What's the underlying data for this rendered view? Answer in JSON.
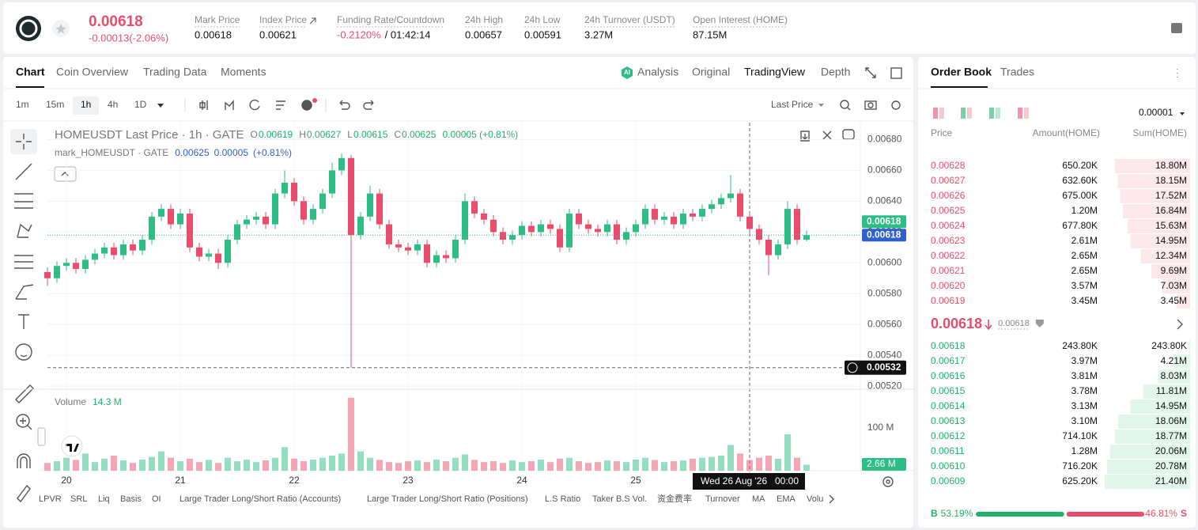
{
  "header": {
    "price": "0.00618",
    "change": "-0.00013(-2.06%)",
    "stats": [
      {
        "label": "Mark Price",
        "value": "0.00618"
      },
      {
        "label": "Index Price",
        "value": "0.00621"
      },
      {
        "label": "Funding Rate/Countdown",
        "value": "-0.2120%",
        "countdown": "/ 01:42:14"
      },
      {
        "label": "24h High",
        "value": "0.00657"
      },
      {
        "label": "24h Low",
        "value": "0.00591"
      },
      {
        "label": "24h Turnover (USDT)",
        "value": "3.27M"
      },
      {
        "label": "Open Interest (HOME)",
        "value": "87.15M"
      }
    ]
  },
  "tabs": [
    "Chart",
    "Coin Overview",
    "Trading Data",
    "Moments"
  ],
  "view_tabs": [
    "Analysis",
    "Original",
    "TradingView",
    "Depth"
  ],
  "intervals": [
    "1m",
    "15m",
    "1h",
    "4h",
    "1D"
  ],
  "price_type": "Last Price",
  "indicators": [
    "LPVR",
    "SRL",
    "Liq",
    "Basis",
    "OI",
    "Large Trader Long/Short Ratio (Accounts)",
    "Large Trader Long/Short Ratio (Positions)",
    "L.S Ratio",
    "Taker B.S Vol.",
    "资金费率",
    "Turnover",
    "MA",
    "EMA",
    "Volu"
  ],
  "chart_data": {
    "type": "candlestick",
    "categories": [
      null,
      null,
      "20",
      null,
      null,
      null,
      null,
      null,
      null,
      null,
      null,
      null,
      null,
      null,
      "21",
      null,
      null,
      null,
      null,
      null,
      null,
      null,
      null,
      null,
      null,
      null,
      "22",
      null,
      null,
      null,
      null,
      null,
      null,
      null,
      null,
      null,
      null,
      null,
      "23",
      null,
      null,
      null,
      null,
      null,
      null,
      null,
      null,
      null,
      null,
      null,
      "24",
      null,
      null,
      null,
      null,
      null,
      null,
      null,
      null,
      null,
      null,
      null,
      "25",
      null,
      null,
      null,
      null,
      null,
      null,
      null,
      null,
      null,
      null,
      null,
      null,
      null,
      null,
      null,
      null,
      null,
      null
    ],
    "open": [
      0.00594,
      0.0059,
      0.00598,
      0.006,
      0.00596,
      0.00602,
      0.00606,
      0.0061,
      0.00605,
      0.00612,
      0.00608,
      0.00615,
      0.0063,
      0.00635,
      0.00625,
      0.00632,
      0.0061,
      0.00604,
      0.00606,
      0.006,
      0.00615,
      0.00625,
      0.00628,
      0.0063,
      0.00625,
      0.00645,
      0.00652,
      0.0064,
      0.00628,
      0.00635,
      0.00645,
      0.0066,
      0.00668,
      0.00618,
      0.0063,
      0.00645,
      0.00625,
      0.00612,
      0.0061,
      0.00608,
      0.00612,
      0.006,
      0.00605,
      0.00603,
      0.00615,
      0.0064,
      0.00632,
      0.00628,
      0.0062,
      0.00615,
      0.00618,
      0.00624,
      0.0062,
      0.00625,
      0.00622,
      0.0061,
      0.00632,
      0.00625,
      0.00622,
      0.0062,
      0.00625,
      0.00615,
      0.0062,
      0.00625,
      0.00635,
      0.00628,
      0.0063,
      0.00625,
      0.00632,
      0.0063,
      0.00635,
      0.00638,
      0.00642,
      0.00645,
      0.0063,
      0.00622,
      0.00615,
      0.00605,
      0.00612,
      0.00635,
      0.00615
    ],
    "high": [
      0.00597,
      0.00601,
      0.00603,
      0.00603,
      0.00605,
      0.00609,
      0.00613,
      0.00613,
      0.00615,
      0.00615,
      0.00618,
      0.00633,
      0.00638,
      0.00638,
      0.00635,
      0.00635,
      0.00613,
      0.00609,
      0.00609,
      0.00618,
      0.00628,
      0.00631,
      0.00633,
      0.00633,
      0.00648,
      0.0066,
      0.00655,
      0.00643,
      0.00638,
      0.00648,
      0.00665,
      0.00671,
      0.0067,
      0.00633,
      0.0065,
      0.00648,
      0.00628,
      0.00615,
      0.00613,
      0.00615,
      0.00615,
      0.00608,
      0.00608,
      0.00618,
      0.00645,
      0.00643,
      0.00635,
      0.00631,
      0.00623,
      0.00621,
      0.00627,
      0.00627,
      0.00628,
      0.00628,
      0.00625,
      0.00635,
      0.00635,
      0.00628,
      0.00625,
      0.00628,
      0.00628,
      0.00623,
      0.00628,
      0.00638,
      0.00638,
      0.00633,
      0.00633,
      0.00635,
      0.00635,
      0.00638,
      0.00641,
      0.00645,
      0.00657,
      0.00648,
      0.00633,
      0.00625,
      0.00618,
      0.00615,
      0.0064,
      0.00638,
      0.00621
    ],
    "low": [
      0.00585,
      0.00587,
      0.00595,
      0.00593,
      0.00593,
      0.00599,
      0.00603,
      0.00602,
      0.00602,
      0.00605,
      0.00605,
      0.00612,
      0.00627,
      0.00622,
      0.00622,
      0.00607,
      0.00601,
      0.00601,
      0.00596,
      0.00597,
      0.00612,
      0.00622,
      0.00625,
      0.00622,
      0.00622,
      0.00642,
      0.00637,
      0.00625,
      0.00625,
      0.00632,
      0.00642,
      0.00657,
      0.00532,
      0.00615,
      0.00627,
      0.00622,
      0.00609,
      0.00607,
      0.00605,
      0.00605,
      0.00597,
      0.00597,
      0.006,
      0.006,
      0.00612,
      0.00629,
      0.00625,
      0.00617,
      0.00612,
      0.00612,
      0.00615,
      0.00617,
      0.00617,
      0.00619,
      0.00607,
      0.00607,
      0.00622,
      0.00619,
      0.00617,
      0.00617,
      0.00612,
      0.00612,
      0.00617,
      0.00622,
      0.00625,
      0.00625,
      0.00622,
      0.00622,
      0.00627,
      0.00627,
      0.00632,
      0.00635,
      0.00639,
      0.00627,
      0.00619,
      0.00612,
      0.00592,
      0.00602,
      0.00609,
      0.00612,
      0.00614
    ],
    "close": [
      0.0059,
      0.00598,
      0.006,
      0.00596,
      0.00602,
      0.00606,
      0.0061,
      0.00605,
      0.00612,
      0.00608,
      0.00615,
      0.0063,
      0.00635,
      0.00625,
      0.00632,
      0.0061,
      0.00604,
      0.00606,
      0.006,
      0.00615,
      0.00625,
      0.00628,
      0.0063,
      0.00625,
      0.00645,
      0.00652,
      0.0064,
      0.00628,
      0.00635,
      0.00645,
      0.0066,
      0.00668,
      0.00618,
      0.0063,
      0.00645,
      0.00625,
      0.00612,
      0.0061,
      0.00608,
      0.00612,
      0.006,
      0.00605,
      0.00603,
      0.00615,
      0.0064,
      0.00632,
      0.00628,
      0.0062,
      0.00615,
      0.00618,
      0.00624,
      0.0062,
      0.00625,
      0.00622,
      0.0061,
      0.00632,
      0.00625,
      0.00622,
      0.0062,
      0.00625,
      0.00615,
      0.0062,
      0.00625,
      0.00635,
      0.00628,
      0.0063,
      0.00625,
      0.00632,
      0.0063,
      0.00635,
      0.00638,
      0.00642,
      0.00645,
      0.0063,
      0.00622,
      0.00615,
      0.00605,
      0.00612,
      0.00635,
      0.00615,
      0.00618
    ],
    "volume": [
      18,
      22,
      30,
      25,
      40,
      20,
      28,
      35,
      24,
      18,
      26,
      32,
      45,
      30,
      22,
      28,
      20,
      25,
      18,
      30,
      22,
      26,
      20,
      24,
      30,
      55,
      28,
      22,
      26,
      30,
      35,
      40,
      170,
      45,
      30,
      25,
      20,
      18,
      22,
      24,
      20,
      26,
      22,
      30,
      38,
      25,
      20,
      22,
      18,
      24,
      20,
      22,
      26,
      20,
      28,
      30,
      22,
      18,
      20,
      24,
      22,
      20,
      26,
      30,
      25,
      20,
      22,
      24,
      28,
      30,
      32,
      35,
      60,
      40,
      25,
      30,
      35,
      28,
      85,
      30,
      14
    ],
    "ylim": [
      0.00518,
      0.00691
    ],
    "yticks": [
      {
        "value": 0.0052,
        "label": "0.00520"
      },
      {
        "value": 0.0054,
        "label": "0.00540"
      },
      {
        "value": 0.0056,
        "label": "0.00560"
      },
      {
        "value": 0.0058,
        "label": "0.00580"
      },
      {
        "value": 0.006,
        "label": "0.00600"
      },
      {
        "value": 0.0062,
        "label": "0.00620"
      },
      {
        "value": 0.0064,
        "label": "0.00640"
      },
      {
        "value": 0.0066,
        "label": "0.00660"
      },
      {
        "value": 0.0068,
        "label": "0.00680"
      }
    ],
    "volume_ylim": [
      0,
      190
    ],
    "volume_ticks": [
      {
        "value": 100,
        "label": "100 M"
      }
    ],
    "up_color": "#2ebd85",
    "down_color": "#ea4d6b",
    "grid": true,
    "last_price": 0.00618,
    "mark_price": 0.00618,
    "crosshair_price": 0.00532,
    "volume_tag": {
      "value": 2.66,
      "label": "2.66 M"
    },
    "legend": {
      "title": "HOMEUSDT Last Price · 1h · GATE",
      "ohlc": [
        {
          "key": "O",
          "value": "0.00619"
        },
        {
          "key": "H",
          "value": "0.00627"
        },
        {
          "key": "L",
          "value": "0.00615"
        },
        {
          "key": "C",
          "value": "0.00625"
        }
      ],
      "change": "0.00005 (+0.81%)"
    },
    "mark_legend": {
      "title": "mark_HOMEUSDT · GATE",
      "values": [
        "0.00625",
        "0.00005",
        "(+0.81%)"
      ]
    },
    "volume_legend": {
      "name": "Volume",
      "value": "14.3 M"
    },
    "crosshair_label": {
      "date": "Wed 26 Aug '26",
      "time": "00:00"
    }
  },
  "order_book": {
    "tabs": [
      "Order Book",
      "Trades"
    ],
    "precision": "0.00001",
    "columns": [
      "Price",
      "Amount(HOME)",
      "Sum(HOME)"
    ],
    "asks": [
      {
        "price": "0.00628",
        "amount": "650.20K",
        "sum": 18.8,
        "sum_label": "18.80M"
      },
      {
        "price": "0.00627",
        "amount": "632.60K",
        "sum": 18.15,
        "sum_label": "18.15M"
      },
      {
        "price": "0.00626",
        "amount": "675.00K",
        "sum": 17.52,
        "sum_label": "17.52M"
      },
      {
        "price": "0.00625",
        "amount": "1.20M",
        "sum": 16.84,
        "sum_label": "16.84M"
      },
      {
        "price": "0.00624",
        "amount": "677.80K",
        "sum": 15.63,
        "sum_label": "15.63M"
      },
      {
        "price": "0.00623",
        "amount": "2.61M",
        "sum": 14.95,
        "sum_label": "14.95M"
      },
      {
        "price": "0.00622",
        "amount": "2.65M",
        "sum": 12.34,
        "sum_label": "12.34M"
      },
      {
        "price": "0.00621",
        "amount": "2.65M",
        "sum": 9.69,
        "sum_label": "9.69M"
      },
      {
        "price": "0.00620",
        "amount": "3.57M",
        "sum": 7.03,
        "sum_label": "7.03M"
      },
      {
        "price": "0.00619",
        "amount": "3.45M",
        "sum": 3.45,
        "sum_label": "3.45M"
      }
    ],
    "mid_price": "0.00618",
    "mid_mark": "0.00618",
    "bids": [
      {
        "price": "0.00618",
        "amount": "243.80K",
        "sum": 0.2438,
        "sum_label": "243.80K"
      },
      {
        "price": "0.00617",
        "amount": "3.97M",
        "sum": 4.21,
        "sum_label": "4.21M"
      },
      {
        "price": "0.00616",
        "amount": "3.81M",
        "sum": 8.03,
        "sum_label": "8.03M"
      },
      {
        "price": "0.00615",
        "amount": "3.78M",
        "sum": 11.81,
        "sum_label": "11.81M"
      },
      {
        "price": "0.00614",
        "amount": "3.13M",
        "sum": 14.95,
        "sum_label": "14.95M"
      },
      {
        "price": "0.00613",
        "amount": "3.10M",
        "sum": 18.06,
        "sum_label": "18.06M"
      },
      {
        "price": "0.00612",
        "amount": "714.10K",
        "sum": 18.77,
        "sum_label": "18.77M"
      },
      {
        "price": "0.00611",
        "amount": "1.28M",
        "sum": 20.06,
        "sum_label": "20.06M"
      },
      {
        "price": "0.00610",
        "amount": "716.20K",
        "sum": 20.78,
        "sum_label": "20.78M"
      },
      {
        "price": "0.00609",
        "amount": "625.20K",
        "sum": 21.4,
        "sum_label": "21.40M"
      }
    ],
    "buy": {
      "key": "B",
      "value": 53.19,
      "label": "53.19%"
    },
    "sell": {
      "key": "S",
      "value": 46.81,
      "label": "46.81%"
    }
  }
}
